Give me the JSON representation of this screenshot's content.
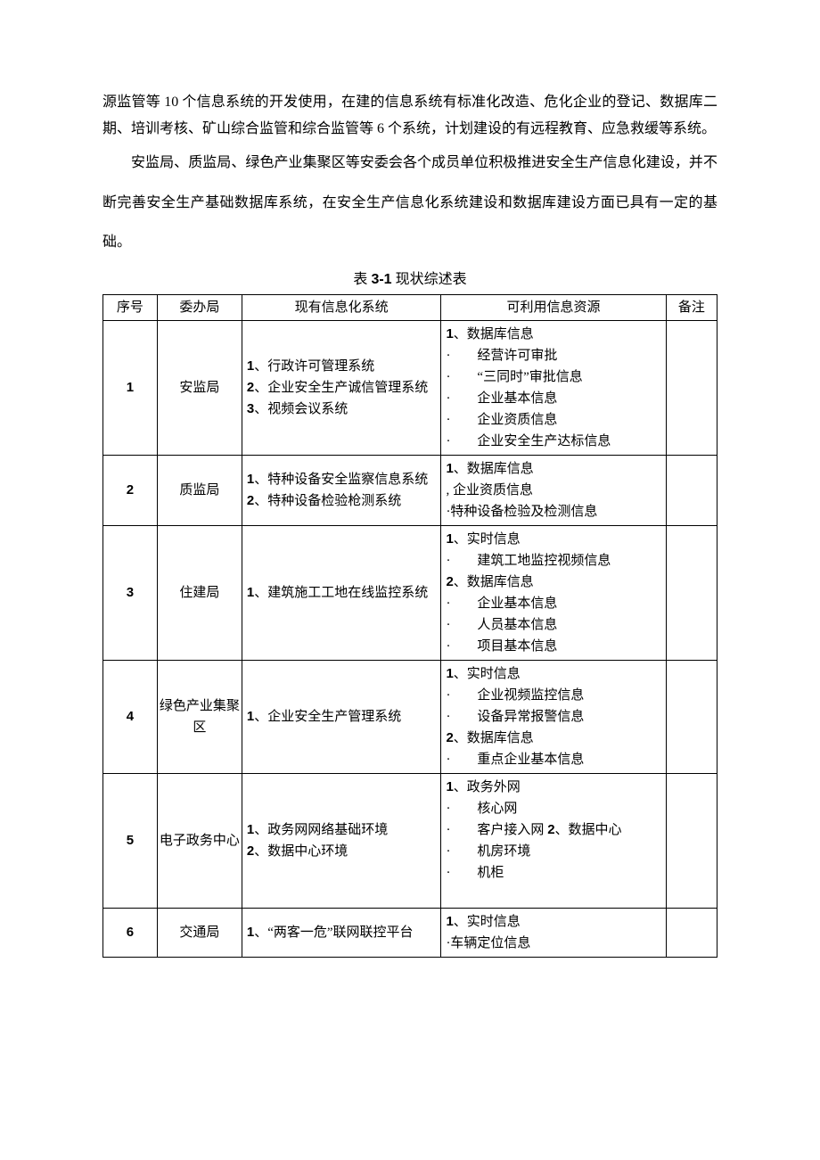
{
  "paragraph1": "源监管等 10 个信息系统的开发使用，在建的信息系统有标准化改造、危化企业的登记、数据库二期、培训考核、矿山综合监管和综合监管等 6 个系统，计划建设的有远程教育、应急救缓等系统。",
  "paragraph2": "安监局、质监局、绿色产业集聚区等安委会各个成员单位积极推进安全生产信息化建设，并不断完善安全生产基础数据库系统，在安全生产信息化系统建设和数据库建设方面已具有一定的基础。",
  "table_caption_prefix": "表 ",
  "table_caption_num": "3-1",
  "table_caption_suffix": " 现状综述表",
  "headers": {
    "seq": "序号",
    "dept": "委办局",
    "sys": "现有信息化系统",
    "res": "可利用信息资源",
    "note": "备注"
  },
  "rows": [
    {
      "seq": "1",
      "dept": "安监局",
      "sys_html": "<span class='num-sans'>1</span>、行政许可管理系统<br><span class='num-sans'>2</span>、企业安全生产诚信管理系统<br><span class='num-sans'>3</span>、视频会议系统",
      "res_html": "<span class='num-sans'>1</span>、数据库信息<br>·  经营许可审批<br>·  “三同时”审批信息<br>·  企业基本信息<br>·  企业资质信息<br>·  企业安全生产达标信息"
    },
    {
      "seq": "2",
      "dept": "质监局",
      "sys_html": "<span class='num-sans'>1</span>、特种设备安全监察信息系统<br><span class='num-sans'>2</span>、特种设备检验枪测系统",
      "res_html": "<span class='num-sans'>1</span>、数据库信息<br>, 企业资质信息<br>·特种设备检验及检测信息"
    },
    {
      "seq": "3",
      "dept": "住建局",
      "sys_html": "<span class='num-sans'>1</span>、建筑施工工地在线监控系统",
      "res_html": "<span class='num-sans'>1</span>、实时信息<br>·  建筑工地监控视频信息<br><span class='num-sans'>2</span>、数据库信息<br>·  企业基本信息<br>·  人员基本信息<br>·  项目基本信息"
    },
    {
      "seq": "4",
      "dept": "绿色产业集聚区",
      "sys_html": "<span class='num-sans'>1</span>、企业安全生产管理系统",
      "res_html": "<span class='num-sans'>1</span>、实时信息<br>·  企业视频监控信息<br>·  设备异常报警信息<br><span class='num-sans'>2</span>、数据库信息<br>·  重点企业基本信息"
    },
    {
      "seq": "5",
      "dept": "电子政务中心",
      "sys_html": "<span class='num-sans'>1</span>、政务网网络基础环境<br><span class='num-sans'>2</span>、数据中心环境",
      "res_html": "<span class='num-sans'>1</span>、政务外网<br>·  核心网<br>·  客户接入网 <span class='num-sans'>2</span>、数据中心<br>·  机房环境<br>·  机柜<br> "
    },
    {
      "seq": "6",
      "dept": "交通局",
      "sys_html": "<span class='num-sans'>1</span>、“两客一危”联网联控平台",
      "res_html": "<span class='num-sans'>1</span>、实时信息<br>·车辆定位信息"
    }
  ]
}
